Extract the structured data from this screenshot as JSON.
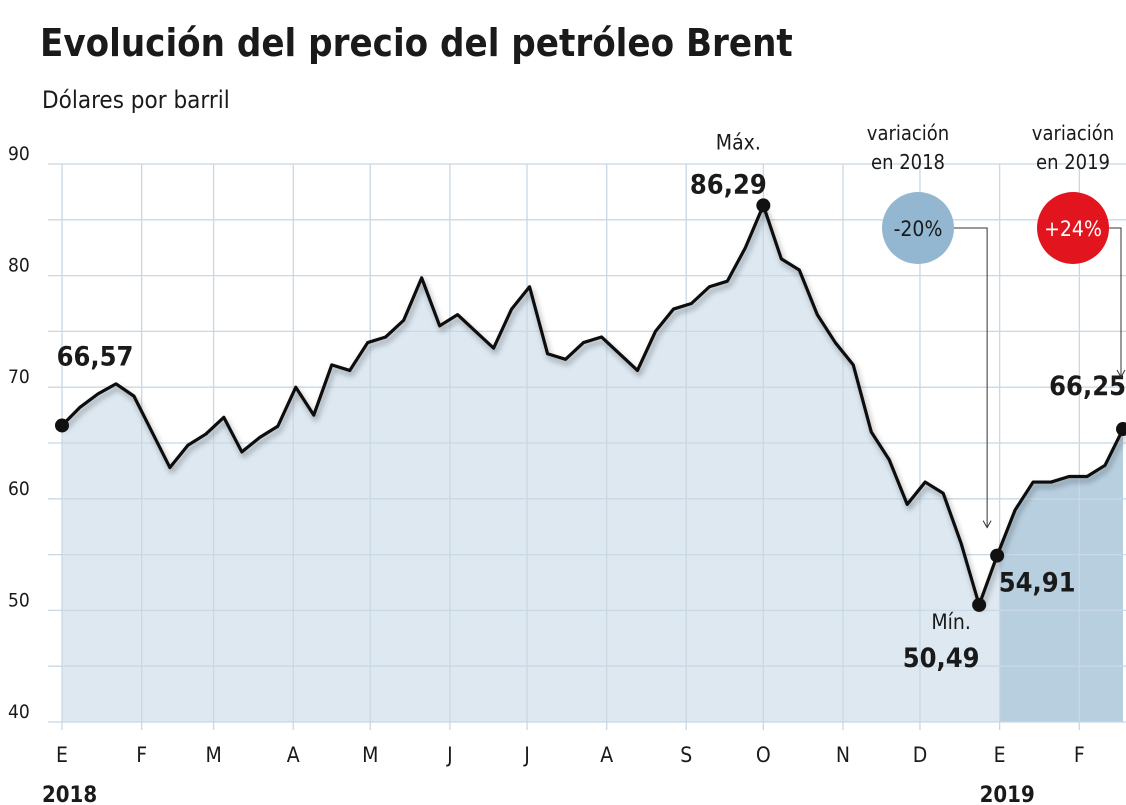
{
  "chart_data": {
    "type": "area-line",
    "title": "Evolución del precio del petróleo Brent",
    "subtitle": "Dólares por barril",
    "values": [
      66.57,
      68.2,
      69.4,
      70.3,
      69.2,
      66.0,
      62.8,
      64.8,
      65.8,
      67.3,
      64.2,
      65.5,
      66.5,
      70,
      67.5,
      72,
      71.5,
      74,
      74.5,
      76,
      79.8,
      75.5,
      76.5,
      75,
      73.5,
      77,
      79,
      73,
      72.5,
      74,
      74.5,
      73,
      71.5,
      75,
      77,
      77.5,
      79,
      79.5,
      82.5,
      86.29,
      81.5,
      80.5,
      76.5,
      74,
      72,
      66,
      63.5,
      59.5,
      61.5,
      60.5,
      56,
      50.49,
      54.91,
      59,
      61.5,
      61.5,
      62,
      62,
      63,
      66.25
    ],
    "value_labels": [
      "66,57",
      null,
      null,
      null,
      null,
      null,
      null,
      null,
      null,
      null,
      null,
      null,
      null,
      null,
      null,
      null,
      null,
      null,
      null,
      null,
      null,
      null,
      null,
      null,
      null,
      null,
      null,
      null,
      null,
      null,
      null,
      null,
      null,
      null,
      null,
      null,
      null,
      null,
      null,
      "86,29",
      null,
      null,
      null,
      null,
      null,
      null,
      null,
      null,
      null,
      null,
      null,
      "50,49",
      "54,91",
      null,
      null,
      null,
      null,
      null,
      null,
      "66,25"
    ],
    "color": "#111111",
    "fill": "#dde8f1",
    "fill_2019": "#b8cfe0",
    "xlim": [
      0,
      59
    ],
    "xticks": [
      {
        "value": 0,
        "label": "E"
      },
      {
        "value": 4.43,
        "label": "F"
      },
      {
        "value": 8.43,
        "label": "M"
      },
      {
        "value": 12.86,
        "label": "A"
      },
      {
        "value": 17.14,
        "label": "M"
      },
      {
        "value": 21.57,
        "label": "J"
      },
      {
        "value": 25.86,
        "label": "J"
      },
      {
        "value": 30.29,
        "label": "A"
      },
      {
        "value": 34.71,
        "label": "S"
      },
      {
        "value": 39,
        "label": "O"
      },
      {
        "value": 43.43,
        "label": "N"
      },
      {
        "value": 47.71,
        "label": "D"
      },
      {
        "value": 52.14,
        "label": "E"
      },
      {
        "value": 56.57,
        "label": "F"
      }
    ],
    "years": [
      {
        "label": "2018",
        "tick": 0
      },
      {
        "label": "2019",
        "tick": 12
      }
    ],
    "ylim": [
      40,
      90
    ],
    "yticks": [
      40,
      50,
      60,
      70,
      80,
      90
    ],
    "ygrid": [
      40,
      45,
      50,
      55,
      60,
      65,
      70,
      75,
      80,
      85,
      90
    ],
    "grid": true,
    "annotations": [
      {
        "text": "Máx.",
        "index": 39
      },
      {
        "text": "Mín.",
        "index": 51
      }
    ],
    "callouts": [
      {
        "heading": [
          "variación",
          "en 2018"
        ],
        "change": "-20%",
        "color": "#93b7d0",
        "index": 52
      },
      {
        "heading": [
          "variación",
          "en 2019"
        ],
        "change": "+24%",
        "color": "#e2141e",
        "index": 59
      }
    ]
  }
}
